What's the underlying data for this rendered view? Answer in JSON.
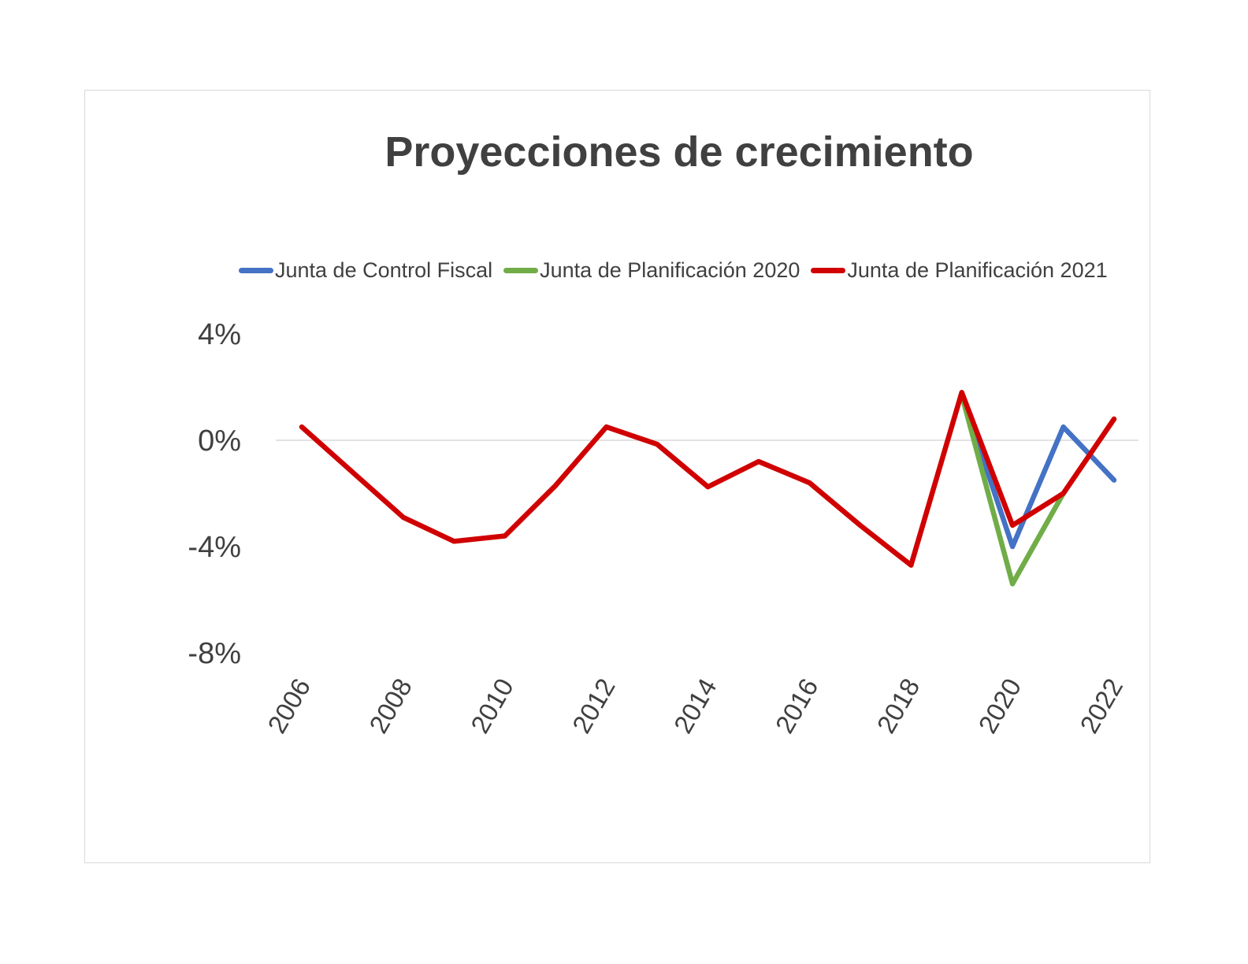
{
  "chart_data": {
    "type": "line",
    "title": "Proyecciones de crecimiento",
    "xlabel": "",
    "ylabel": "",
    "x": [
      2006,
      2007,
      2008,
      2009,
      2010,
      2011,
      2012,
      2013,
      2014,
      2015,
      2016,
      2017,
      2018,
      2019,
      2020,
      2021,
      2022
    ],
    "x_tick_labels": [
      "2006",
      "2008",
      "2010",
      "2012",
      "2014",
      "2016",
      "2018",
      "2020",
      "2022"
    ],
    "y_tick_labels": [
      "4%",
      "0%",
      "-4%",
      "-8%"
    ],
    "ylim": [
      -8,
      4
    ],
    "y_ticks": [
      4,
      0,
      -4,
      -8
    ],
    "grid": "zero line only",
    "legend": "top",
    "series": [
      {
        "name": "Junta de Control Fiscal",
        "color": "#4472c4",
        "values": [
          null,
          null,
          null,
          null,
          null,
          null,
          null,
          null,
          null,
          null,
          null,
          null,
          null,
          1.7,
          -4.0,
          0.5,
          -1.5
        ]
      },
      {
        "name": "Junta de Planificación 2020",
        "color": "#70ad47",
        "values": [
          null,
          null,
          null,
          null,
          null,
          null,
          null,
          null,
          null,
          null,
          null,
          null,
          null,
          1.7,
          -5.4,
          -2.0,
          null
        ]
      },
      {
        "name": "Junta de Planificación 2021",
        "color": "#d00000",
        "values": [
          0.5,
          -1.2,
          -2.9,
          -3.8,
          -3.6,
          -1.7,
          0.5,
          -0.15,
          -1.75,
          -0.8,
          -1.6,
          -3.2,
          -4.7,
          1.8,
          -3.2,
          -2.0,
          0.8
        ]
      }
    ]
  }
}
